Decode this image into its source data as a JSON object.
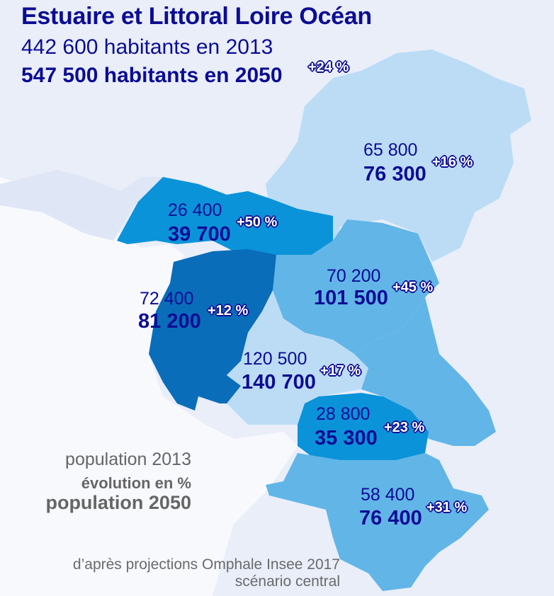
{
  "title": "Estuaire et Littoral Loire Océan",
  "summary": {
    "pop_2013": "442 600 habitants en 2013",
    "pop_2050": "547 500 habitants en 2050",
    "evolution": "+24 %"
  },
  "colors": {
    "text": "#0c0c94",
    "background": "#e9eef9",
    "sea": "#f7f9fd",
    "class_light": "#bcdcf5",
    "class_medium": "#62b5e7",
    "class_strong": "#0b93d9",
    "class_darkest": "#0a6db9"
  },
  "regions": [
    {
      "pop_2013": "65 800",
      "pop_2050": "76 300",
      "evolution": "+16 %"
    },
    {
      "pop_2013": "26 400",
      "pop_2050": "39 700",
      "evolution": "+50 %"
    },
    {
      "pop_2013": "70 200",
      "pop_2050": "101 500",
      "evolution": "+45 %"
    },
    {
      "pop_2013": "72 400",
      "pop_2050": "81 200",
      "evolution": "+12 %"
    },
    {
      "pop_2013": "120 500",
      "pop_2050": "140 700",
      "evolution": "+17 %"
    },
    {
      "pop_2013": "28 800",
      "pop_2050": "35 300",
      "evolution": "+23 %"
    },
    {
      "pop_2013": "58 400",
      "pop_2050": "76 400",
      "evolution": "+31 %"
    }
  ],
  "legend": {
    "line1": "population 2013",
    "line2": "évolution en %",
    "line3": "population 2050"
  },
  "source": {
    "line1": "d’après projections Omphale Insee 2017",
    "line2": "scénario central"
  }
}
